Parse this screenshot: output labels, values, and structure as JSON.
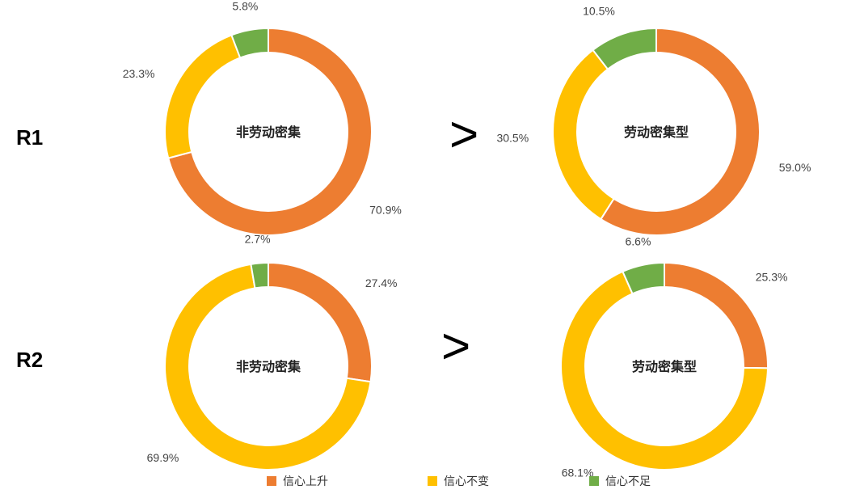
{
  "rows": [
    {
      "label": "R1",
      "comparator": ">"
    },
    {
      "label": "R2",
      "comparator": ">"
    }
  ],
  "colors": {
    "rise": "#ED7D31",
    "same": "#FFC000",
    "low": "#70AD47"
  },
  "chart_data": [
    {
      "type": "pie",
      "title": "非劳动密集",
      "row": "R1",
      "categories": [
        "信心上升",
        "信心不变",
        "信心不足"
      ],
      "values": [
        70.9,
        23.3,
        5.8
      ],
      "labels": [
        "70.9%",
        "23.3%",
        "5.8%"
      ]
    },
    {
      "type": "pie",
      "title": "劳动密集型",
      "row": "R1",
      "categories": [
        "信心上升",
        "信心不变",
        "信心不足"
      ],
      "values": [
        59.0,
        30.5,
        10.5
      ],
      "labels": [
        "59.0%",
        "30.5%",
        "10.5%"
      ]
    },
    {
      "type": "pie",
      "title": "非劳动密集",
      "row": "R2",
      "categories": [
        "信心上升",
        "信心不变",
        "信心不足"
      ],
      "values": [
        27.4,
        69.9,
        2.7
      ],
      "labels": [
        "27.4%",
        "69.9%",
        "2.7%"
      ]
    },
    {
      "type": "pie",
      "title": "劳动密集型",
      "row": "R2",
      "categories": [
        "信心上升",
        "信心不变",
        "信心不足"
      ],
      "values": [
        25.3,
        68.1,
        6.6
      ],
      "labels": [
        "25.3%",
        "68.1%",
        "6.6%"
      ]
    }
  ],
  "legend": [
    {
      "label": "信心上升",
      "color_key": "rise"
    },
    {
      "label": "信心不变",
      "color_key": "same"
    },
    {
      "label": "信心不足",
      "color_key": "low"
    }
  ]
}
